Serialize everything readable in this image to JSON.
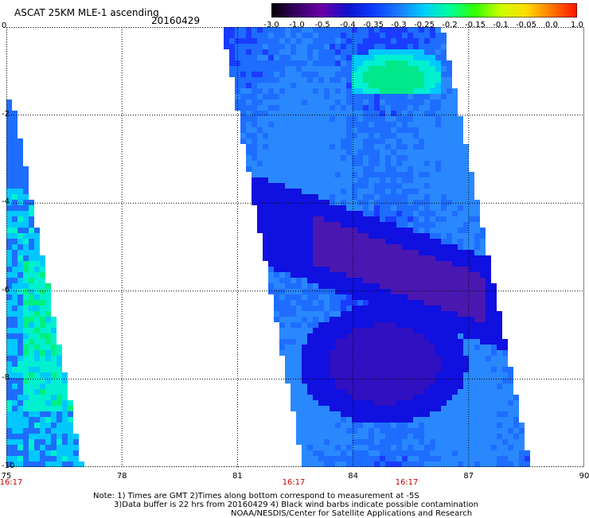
{
  "header": {
    "title": "ASCAT 25KM MLE-1 ascending",
    "date": "20160429"
  },
  "colorbar": {
    "labels": [
      "-3.0",
      "-1.0",
      "-0.5",
      "-0.4",
      "-0.35",
      "-0.3",
      "-0.25",
      "-0.2",
      "-0.15",
      "-0.1",
      "-0.05",
      "0.0",
      "1.0"
    ],
    "colors": [
      "#000000",
      "#3a0066",
      "#6a00a8",
      "#1010cc",
      "#0a3cff",
      "#1a7aff",
      "#00cfff",
      "#00ff99",
      "#33ff00",
      "#ccff00",
      "#ffdd00",
      "#ff7700",
      "#ff1100"
    ]
  },
  "axes": {
    "x_ticks": [
      "75",
      "78",
      "81",
      "84",
      "87",
      "90"
    ],
    "y_ticks": [
      "0",
      "-2",
      "-4",
      "-6",
      "-8",
      "-10"
    ],
    "x_range": [
      75,
      90
    ],
    "y_range": [
      -10,
      0
    ],
    "grid": true
  },
  "times": [
    "16:17",
    "16:17",
    "16:17"
  ],
  "notes": [
    "Note: 1) Times are GMT 2)Times along bottom correspond to measurement at -5S",
    "3)Data buffer is 22 hrs from 20160429 4) Black wind barbs indicate possible contamination",
    "NOAA/NESDIS/Center for Satellite Applications and Research"
  ]
}
